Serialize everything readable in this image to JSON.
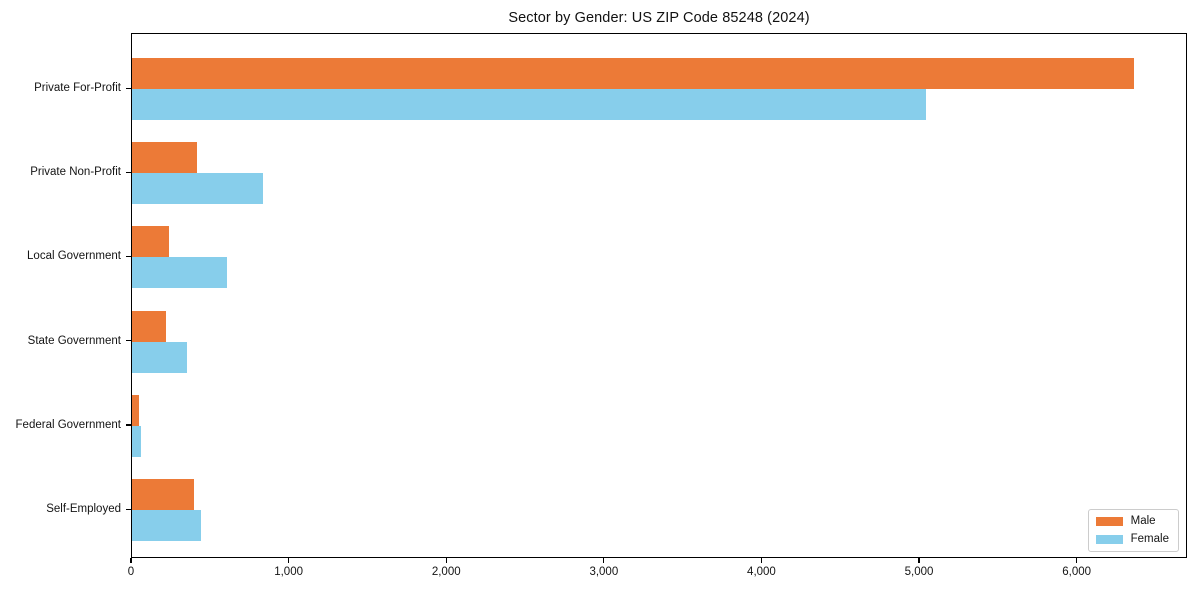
{
  "chart_data": {
    "type": "bar",
    "orientation": "horizontal",
    "title": "Sector by Gender: US ZIP Code 85248 (2024)",
    "categories": [
      "Private For-Profit",
      "Private Non-Profit",
      "Local Government",
      "State Government",
      "Federal Government",
      "Self-Employed"
    ],
    "series": [
      {
        "name": "Male",
        "color": "#EC7A37",
        "values": [
          6360,
          410,
          235,
          215,
          45,
          390
        ]
      },
      {
        "name": "Female",
        "color": "#87CEEB",
        "values": [
          5040,
          830,
          600,
          350,
          55,
          435
        ]
      }
    ],
    "xlabel": "",
    "ylabel": "",
    "xlim": [
      0,
      6700
    ],
    "xticks": {
      "values": [
        0,
        1000,
        2000,
        3000,
        4000,
        5000,
        6000
      ],
      "labels": [
        "0",
        "1,000",
        "2,000",
        "3,000",
        "4,000",
        "5,000",
        "6,000"
      ]
    },
    "grid": false,
    "legend": {
      "position": "lower right"
    }
  }
}
